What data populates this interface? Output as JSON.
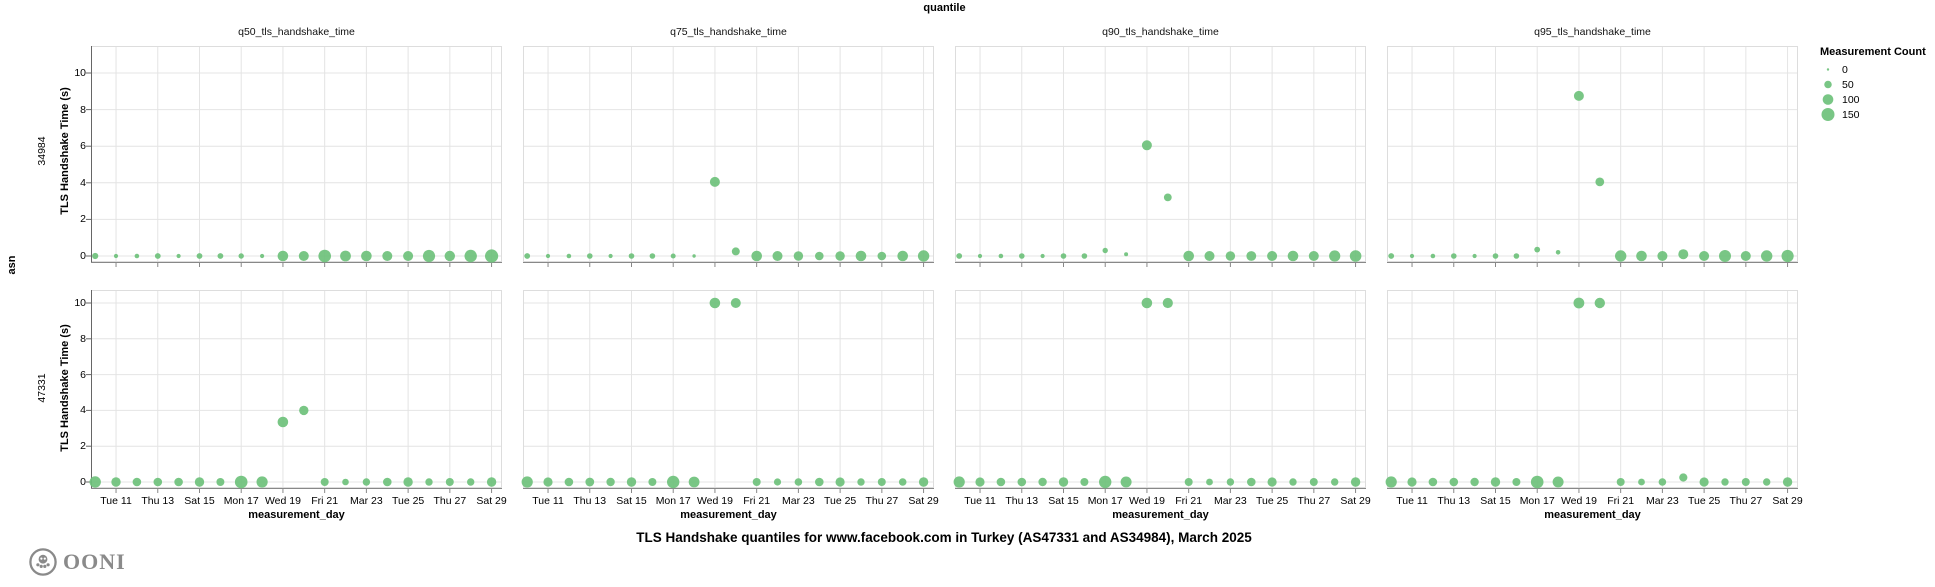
{
  "footer": {
    "title": "TLS Handshake quantiles for www.facebook.com in Turkey (AS47331 and AS34984), March 2025",
    "logo_text": "OONI"
  },
  "legend": {
    "title": "Measurement Count",
    "items": [
      {
        "label": "0",
        "count": 0
      },
      {
        "label": "50",
        "count": 50
      },
      {
        "label": "100",
        "count": 100
      },
      {
        "label": "150",
        "count": 150
      }
    ]
  },
  "chart_data": {
    "type": "scatter",
    "column_field_label": "quantile",
    "row_field_label": "asn",
    "column_facets": [
      "q50_tls_handshake_time",
      "q75_tls_handshake_time",
      "q90_tls_handshake_time",
      "q95_tls_handshake_time"
    ],
    "row_facets": [
      "34984",
      "47331"
    ],
    "x_axis": {
      "label": "measurement_day",
      "ticks": [
        {
          "label": "Tue 11",
          "day": 11
        },
        {
          "label": "Thu 13",
          "day": 13
        },
        {
          "label": "Sat 15",
          "day": 15
        },
        {
          "label": "Mon 17",
          "day": 17
        },
        {
          "label": "Wed 19",
          "day": 19
        },
        {
          "label": "Fri 21",
          "day": 21
        },
        {
          "label": "Mar 23",
          "day": 23
        },
        {
          "label": "Tue 25",
          "day": 25
        },
        {
          "label": "Thu 27",
          "day": 27
        },
        {
          "label": "Sat 29",
          "day": 29
        }
      ],
      "domain": [
        9.8,
        29.5
      ]
    },
    "y_axis": {
      "label": "TLS Handshake Time (s)",
      "ticks": [
        0,
        2,
        4,
        6,
        8,
        10
      ],
      "domain": [
        -0.35,
        11.5
      ]
    },
    "size_scale": {
      "field": "Measurement Count",
      "max_count": 150,
      "max_radius": 6.5
    },
    "colors": {
      "point": "#6ec17b",
      "grid": "#e4e4e4",
      "axis": "#888888",
      "y_domain": "#666666",
      "logo": "#8a8a8a"
    },
    "series": {
      "34984": {
        "q50_tls_handshake_time": [
          {
            "d": 10,
            "v": 0,
            "c": 35
          },
          {
            "d": 11,
            "v": 0,
            "c": 15
          },
          {
            "d": 12,
            "v": 0,
            "c": 18
          },
          {
            "d": 13,
            "v": 0,
            "c": 30
          },
          {
            "d": 14,
            "v": 0,
            "c": 15
          },
          {
            "d": 15,
            "v": 0,
            "c": 30
          },
          {
            "d": 16,
            "v": 0,
            "c": 30
          },
          {
            "d": 17,
            "v": 0,
            "c": 25
          },
          {
            "d": 18,
            "v": 0,
            "c": 15
          },
          {
            "d": 19,
            "v": 0,
            "c": 100
          },
          {
            "d": 20,
            "v": 0,
            "c": 90
          },
          {
            "d": 21,
            "v": 0,
            "c": 140
          },
          {
            "d": 22,
            "v": 0,
            "c": 105
          },
          {
            "d": 23,
            "v": 0,
            "c": 100
          },
          {
            "d": 24,
            "v": 0,
            "c": 90
          },
          {
            "d": 25,
            "v": 0,
            "c": 90
          },
          {
            "d": 26,
            "v": 0,
            "c": 130
          },
          {
            "d": 27,
            "v": 0,
            "c": 95
          },
          {
            "d": 28,
            "v": 0,
            "c": 135
          },
          {
            "d": 29,
            "v": 0,
            "c": 155
          }
        ],
        "q75_tls_handshake_time": [
          {
            "d": 10,
            "v": 0,
            "c": 30
          },
          {
            "d": 11,
            "v": 0,
            "c": 15
          },
          {
            "d": 12,
            "v": 0,
            "c": 18
          },
          {
            "d": 13,
            "v": 0,
            "c": 28
          },
          {
            "d": 14,
            "v": 0,
            "c": 15
          },
          {
            "d": 15,
            "v": 0,
            "c": 28
          },
          {
            "d": 16,
            "v": 0,
            "c": 28
          },
          {
            "d": 17,
            "v": 0,
            "c": 22
          },
          {
            "d": 18,
            "v": 0,
            "c": 10
          },
          {
            "d": 19,
            "v": 4.05,
            "c": 90
          },
          {
            "d": 20,
            "v": 0.25,
            "c": 57
          },
          {
            "d": 21,
            "v": 0,
            "c": 100
          },
          {
            "d": 22,
            "v": 0,
            "c": 89
          },
          {
            "d": 23,
            "v": 0,
            "c": 78
          },
          {
            "d": 24,
            "v": 0,
            "c": 66
          },
          {
            "d": 25,
            "v": 0,
            "c": 78
          },
          {
            "d": 26,
            "v": 0,
            "c": 100
          },
          {
            "d": 27,
            "v": 0,
            "c": 66
          },
          {
            "d": 28,
            "v": 0,
            "c": 100
          },
          {
            "d": 29,
            "v": 0,
            "c": 115
          }
        ],
        "q90_tls_handshake_time": [
          {
            "d": 10,
            "v": 0,
            "c": 30
          },
          {
            "d": 11,
            "v": 0,
            "c": 15
          },
          {
            "d": 12,
            "v": 0,
            "c": 18
          },
          {
            "d": 13,
            "v": 0,
            "c": 28
          },
          {
            "d": 14,
            "v": 0,
            "c": 15
          },
          {
            "d": 15,
            "v": 0,
            "c": 28
          },
          {
            "d": 16,
            "v": 0,
            "c": 28
          },
          {
            "d": 17,
            "v": 0.3,
            "c": 25
          },
          {
            "d": 18,
            "v": 0.1,
            "c": 14
          },
          {
            "d": 19,
            "v": 6.05,
            "c": 90
          },
          {
            "d": 20,
            "v": 3.2,
            "c": 55
          },
          {
            "d": 21,
            "v": 0,
            "c": 100
          },
          {
            "d": 22,
            "v": 0,
            "c": 90
          },
          {
            "d": 23,
            "v": 0,
            "c": 80
          },
          {
            "d": 24,
            "v": 0,
            "c": 85
          },
          {
            "d": 25,
            "v": 0,
            "c": 90
          },
          {
            "d": 26,
            "v": 0,
            "c": 100
          },
          {
            "d": 27,
            "v": 0,
            "c": 90
          },
          {
            "d": 28,
            "v": 0,
            "c": 110
          },
          {
            "d": 29,
            "v": 0,
            "c": 120
          }
        ],
        "q95_tls_handshake_time": [
          {
            "d": 10,
            "v": 0,
            "c": 30
          },
          {
            "d": 11,
            "v": 0,
            "c": 15
          },
          {
            "d": 12,
            "v": 0,
            "c": 18
          },
          {
            "d": 13,
            "v": 0,
            "c": 28
          },
          {
            "d": 14,
            "v": 0,
            "c": 15
          },
          {
            "d": 15,
            "v": 0,
            "c": 28
          },
          {
            "d": 16,
            "v": 0,
            "c": 28
          },
          {
            "d": 17,
            "v": 0.35,
            "c": 30
          },
          {
            "d": 18,
            "v": 0.2,
            "c": 18
          },
          {
            "d": 19,
            "v": 8.75,
            "c": 90
          },
          {
            "d": 20,
            "v": 4.05,
            "c": 70
          },
          {
            "d": 21,
            "v": 0,
            "c": 115
          },
          {
            "d": 22,
            "v": 0,
            "c": 100
          },
          {
            "d": 23,
            "v": 0,
            "c": 90
          },
          {
            "d": 24,
            "v": 0.1,
            "c": 90
          },
          {
            "d": 25,
            "v": 0,
            "c": 90
          },
          {
            "d": 26,
            "v": 0,
            "c": 127
          },
          {
            "d": 27,
            "v": 0,
            "c": 90
          },
          {
            "d": 28,
            "v": 0,
            "c": 115
          },
          {
            "d": 29,
            "v": 0,
            "c": 130
          }
        ]
      },
      "47331": {
        "q50_tls_handshake_time": [
          {
            "d": 10,
            "v": 0,
            "c": 115
          },
          {
            "d": 11,
            "v": 0,
            "c": 78
          },
          {
            "d": 12,
            "v": 0,
            "c": 66
          },
          {
            "d": 13,
            "v": 0,
            "c": 66
          },
          {
            "d": 14,
            "v": 0,
            "c": 66
          },
          {
            "d": 15,
            "v": 0,
            "c": 78
          },
          {
            "d": 16,
            "v": 0,
            "c": 57
          },
          {
            "d": 17,
            "v": 0,
            "c": 140
          },
          {
            "d": 18,
            "v": 0,
            "c": 110
          },
          {
            "d": 19,
            "v": 3.35,
            "c": 100
          },
          {
            "d": 20,
            "v": 4.0,
            "c": 78
          },
          {
            "d": 21,
            "v": 0,
            "c": 57
          },
          {
            "d": 22,
            "v": 0,
            "c": 39
          },
          {
            "d": 23,
            "v": 0,
            "c": 49
          },
          {
            "d": 24,
            "v": 0,
            "c": 66
          },
          {
            "d": 25,
            "v": 0,
            "c": 78
          },
          {
            "d": 26,
            "v": 0,
            "c": 49
          },
          {
            "d": 27,
            "v": 0,
            "c": 57
          },
          {
            "d": 28,
            "v": 0,
            "c": 49
          },
          {
            "d": 29,
            "v": 0,
            "c": 78
          }
        ],
        "q75_tls_handshake_time": [
          {
            "d": 10,
            "v": 0,
            "c": 110
          },
          {
            "d": 11,
            "v": 0,
            "c": 75
          },
          {
            "d": 12,
            "v": 0,
            "c": 66
          },
          {
            "d": 13,
            "v": 0,
            "c": 70
          },
          {
            "d": 14,
            "v": 0,
            "c": 62
          },
          {
            "d": 15,
            "v": 0,
            "c": 78
          },
          {
            "d": 16,
            "v": 0,
            "c": 57
          },
          {
            "d": 17,
            "v": 0,
            "c": 135
          },
          {
            "d": 18,
            "v": 0,
            "c": 105
          },
          {
            "d": 19,
            "v": 10,
            "c": 100
          },
          {
            "d": 20,
            "v": 10,
            "c": 90
          },
          {
            "d": 21,
            "v": 0,
            "c": 57
          },
          {
            "d": 22,
            "v": 0,
            "c": 45
          },
          {
            "d": 23,
            "v": 0,
            "c": 52
          },
          {
            "d": 24,
            "v": 0,
            "c": 66
          },
          {
            "d": 25,
            "v": 0,
            "c": 75
          },
          {
            "d": 26,
            "v": 0,
            "c": 49
          },
          {
            "d": 27,
            "v": 0,
            "c": 57
          },
          {
            "d": 28,
            "v": 0,
            "c": 52
          },
          {
            "d": 29,
            "v": 0,
            "c": 78
          }
        ],
        "q90_tls_handshake_time": [
          {
            "d": 10,
            "v": 0,
            "c": 112
          },
          {
            "d": 11,
            "v": 0,
            "c": 75
          },
          {
            "d": 12,
            "v": 0,
            "c": 66
          },
          {
            "d": 13,
            "v": 0,
            "c": 66
          },
          {
            "d": 14,
            "v": 0,
            "c": 62
          },
          {
            "d": 15,
            "v": 0,
            "c": 78
          },
          {
            "d": 16,
            "v": 0,
            "c": 57
          },
          {
            "d": 17,
            "v": 0,
            "c": 138
          },
          {
            "d": 18,
            "v": 0,
            "c": 108
          },
          {
            "d": 19,
            "v": 10,
            "c": 100
          },
          {
            "d": 20,
            "v": 10,
            "c": 92
          },
          {
            "d": 21,
            "v": 0,
            "c": 57
          },
          {
            "d": 22,
            "v": 0,
            "c": 42
          },
          {
            "d": 23,
            "v": 0,
            "c": 49
          },
          {
            "d": 24,
            "v": 0,
            "c": 66
          },
          {
            "d": 25,
            "v": 0,
            "c": 75
          },
          {
            "d": 26,
            "v": 0,
            "c": 49
          },
          {
            "d": 27,
            "v": 0,
            "c": 57
          },
          {
            "d": 28,
            "v": 0,
            "c": 49
          },
          {
            "d": 29,
            "v": 0,
            "c": 78
          }
        ],
        "q95_tls_handshake_time": [
          {
            "d": 10,
            "v": 0,
            "c": 112
          },
          {
            "d": 11,
            "v": 0,
            "c": 75
          },
          {
            "d": 12,
            "v": 0,
            "c": 66
          },
          {
            "d": 13,
            "v": 0,
            "c": 66
          },
          {
            "d": 14,
            "v": 0,
            "c": 62
          },
          {
            "d": 15,
            "v": 0,
            "c": 78
          },
          {
            "d": 16,
            "v": 0,
            "c": 57
          },
          {
            "d": 17,
            "v": 0,
            "c": 140
          },
          {
            "d": 18,
            "v": 0,
            "c": 108
          },
          {
            "d": 19,
            "v": 10,
            "c": 102
          },
          {
            "d": 20,
            "v": 10,
            "c": 95
          },
          {
            "d": 21,
            "v": 0,
            "c": 57
          },
          {
            "d": 22,
            "v": 0,
            "c": 42
          },
          {
            "d": 23,
            "v": 0,
            "c": 52
          },
          {
            "d": 24,
            "v": 0.25,
            "c": 60
          },
          {
            "d": 25,
            "v": 0,
            "c": 75
          },
          {
            "d": 26,
            "v": 0,
            "c": 49
          },
          {
            "d": 27,
            "v": 0,
            "c": 57
          },
          {
            "d": 28,
            "v": 0,
            "c": 49
          },
          {
            "d": 29,
            "v": 0,
            "c": 80
          }
        ]
      }
    }
  }
}
